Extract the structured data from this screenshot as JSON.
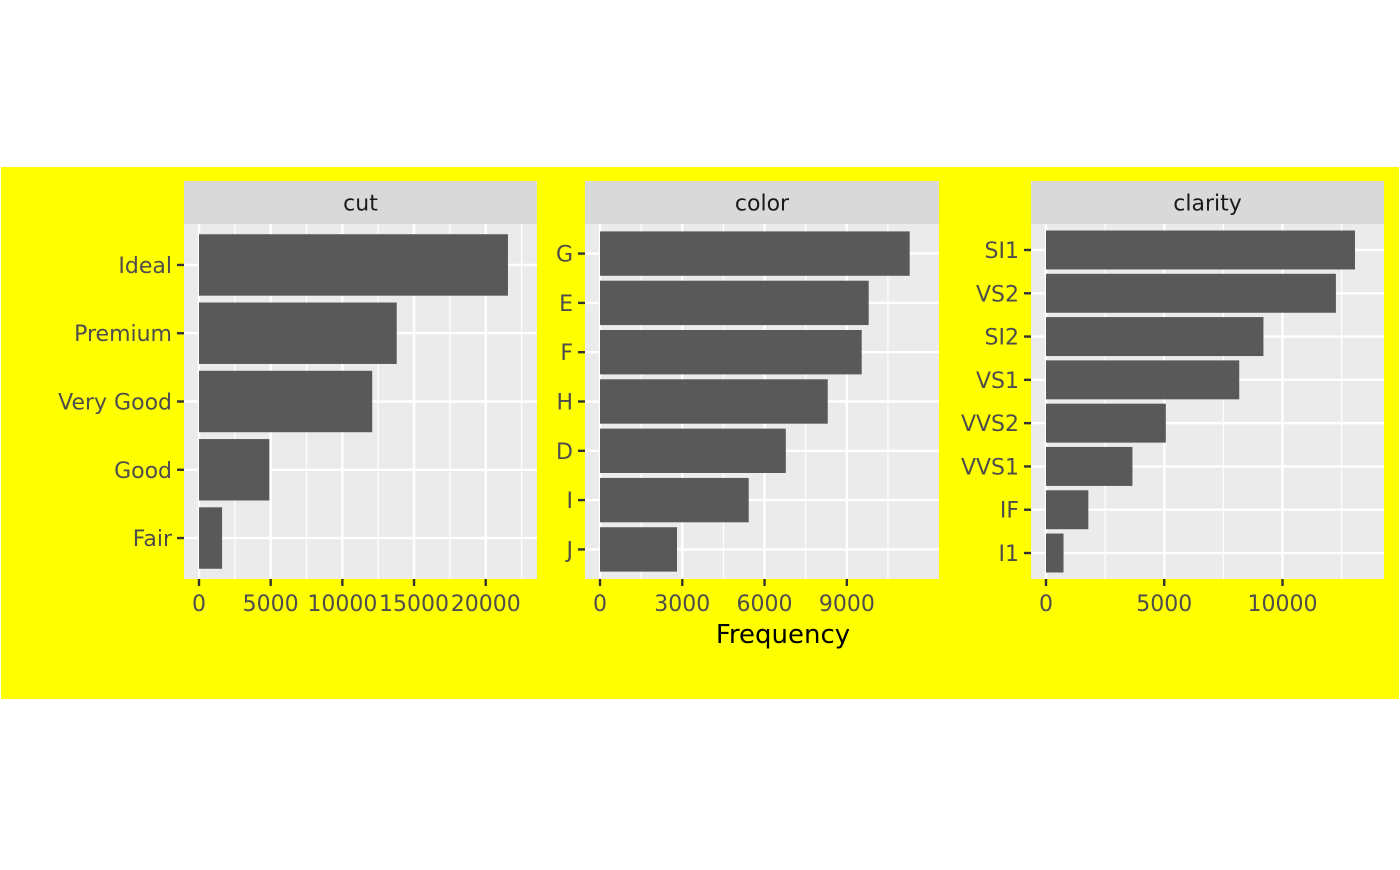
{
  "colors": {
    "panel_background": "#ebebeb",
    "strip_background": "#d9d9d9",
    "bar_fill": "#595959",
    "plot_background": "#ffff00",
    "grid": "#ffffff",
    "axis_text": "#4d4d4d"
  },
  "chart_data": [
    {
      "type": "bar",
      "orientation": "horizontal",
      "title": "cut",
      "categories": [
        "Ideal",
        "Premium",
        "Very Good",
        "Good",
        "Fair"
      ],
      "values": [
        21551,
        13791,
        12082,
        4906,
        1610
      ],
      "xlim": [
        0,
        22600
      ],
      "xticks": [
        0,
        5000,
        10000,
        15000,
        20000
      ],
      "xticklabels": [
        "0",
        "5000",
        "10000",
        "15000",
        "20000"
      ]
    },
    {
      "type": "bar",
      "orientation": "horizontal",
      "title": "color",
      "categories": [
        "G",
        "E",
        "F",
        "H",
        "D",
        "I",
        "J"
      ],
      "values": [
        11292,
        9797,
        9542,
        8304,
        6775,
        5422,
        2808
      ],
      "xlim": [
        0,
        11850
      ],
      "xticks": [
        0,
        3000,
        6000,
        9000
      ],
      "xticklabels": [
        "0",
        "3000",
        "6000",
        "9000"
      ]
    },
    {
      "type": "bar",
      "orientation": "horizontal",
      "title": "clarity",
      "categories": [
        "SI1",
        "VS2",
        "SI2",
        "VS1",
        "VVS2",
        "VVS1",
        "IF",
        "I1"
      ],
      "values": [
        13065,
        12258,
        9194,
        8171,
        5066,
        3655,
        1790,
        741
      ],
      "xlim": [
        0,
        13700
      ],
      "xticks": [
        0,
        5000,
        10000
      ],
      "xticklabels": [
        "0",
        "5000",
        "10000"
      ]
    }
  ],
  "xlabel": "Frequency"
}
